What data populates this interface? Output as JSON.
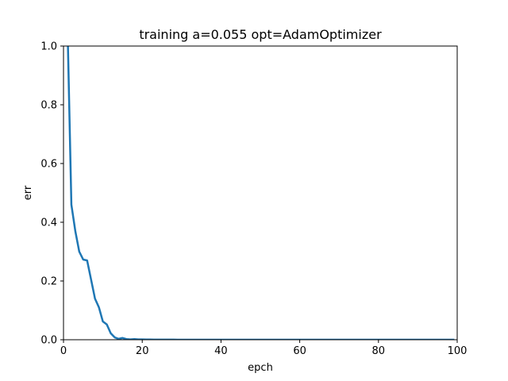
{
  "chart_data": {
    "type": "line",
    "title": "training a=0.055 opt=AdamOptimizer",
    "xlabel": "epch",
    "ylabel": "err",
    "xlim": [
      0,
      100
    ],
    "ylim": [
      0,
      1.0
    ],
    "grid": false,
    "legend": "none",
    "x_ticks": [
      0,
      20,
      40,
      60,
      80,
      100
    ],
    "x_tick_labels": [
      "0",
      "20",
      "40",
      "60",
      "80",
      "100"
    ],
    "y_ticks": [
      0,
      0.2,
      0.4,
      0.6,
      0.8,
      1.0
    ],
    "y_tick_labels": [
      "0.0",
      "0.2",
      "0.4",
      "0.6",
      "0.8",
      "1.0"
    ],
    "series": [
      {
        "color": "#1f77b4",
        "x": [
          0,
          1,
          2,
          3,
          4,
          5,
          6,
          7,
          8,
          9,
          10,
          11,
          12,
          13,
          14,
          15,
          16,
          17,
          18,
          19,
          20,
          21,
          22,
          23,
          24,
          25,
          26,
          27,
          28,
          29,
          30,
          40,
          50,
          60,
          70,
          80,
          90,
          99
        ],
        "y": [
          1.6,
          1.08,
          0.46,
          0.37,
          0.3,
          0.273,
          0.27,
          0.205,
          0.14,
          0.11,
          0.062,
          0.052,
          0.022,
          0.008,
          0.003,
          0.006,
          0.002,
          0.001,
          0.002,
          0.001,
          0.001,
          0.0005,
          0.0005,
          0.0003,
          0.0003,
          0.0003,
          0.0002,
          0.0002,
          0.0002,
          0.0001,
          0.0001,
          0.0001,
          0.0001,
          0.0001,
          0.0001,
          0.0001,
          0.0001,
          0.0001
        ]
      }
    ]
  }
}
